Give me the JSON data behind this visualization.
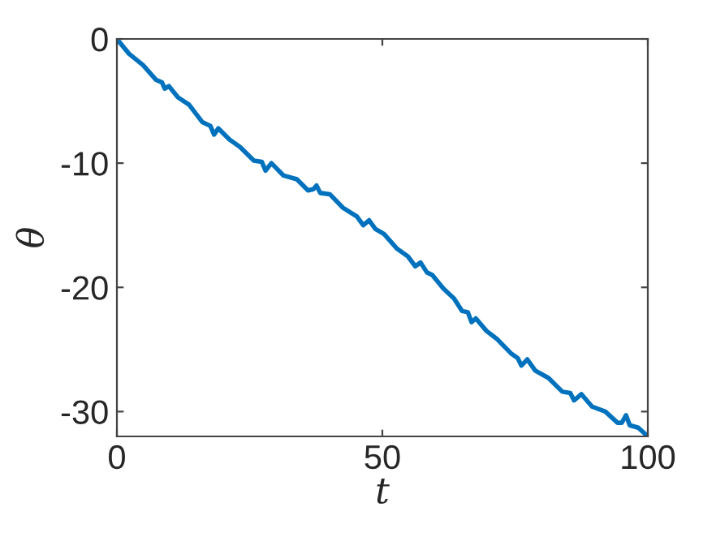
{
  "chart_data": {
    "type": "line",
    "xlabel": "t",
    "ylabel": "θ",
    "xlim": [
      0,
      100
    ],
    "ylim": [
      -32,
      0
    ],
    "xticks": [
      0,
      50,
      100
    ],
    "yticks": [
      {
        "value": 0,
        "label": "0"
      },
      {
        "value": -10,
        "label": "-10"
      },
      {
        "value": -20,
        "label": "-20"
      },
      {
        "value": -30,
        "label": "-30"
      }
    ],
    "grid": false,
    "legend": false,
    "series": [
      {
        "color": "#0072bd",
        "line_style": "solid",
        "x": [
          0,
          2.3,
          4.9,
          7.4,
          8.5,
          9.0,
          9.8,
          11.5,
          13.6,
          16.1,
          17.6,
          18.3,
          19.1,
          21.2,
          23.2,
          25.8,
          27.3,
          28.0,
          29.1,
          31.4,
          33.9,
          36.0,
          37.0,
          37.6,
          38.3,
          40.1,
          42.6,
          45.2,
          46.4,
          47.5,
          48.7,
          50.3,
          52.8,
          54.8,
          56.2,
          57.2,
          58.4,
          59.4,
          61.5,
          63.5,
          65.0,
          66.1,
          66.8,
          67.6,
          69.6,
          71.7,
          74.2,
          75.5,
          76.2,
          77.3,
          78.8,
          81.3,
          83.9,
          85.4,
          86.1,
          87.5,
          89.5,
          92.0,
          94.3,
          95.1,
          95.9,
          96.6,
          98.2,
          100
        ],
        "values": [
          0,
          -1.2,
          -2.1,
          -3.3,
          -3.5,
          -4.0,
          -3.8,
          -4.7,
          -5.3,
          -6.7,
          -7.0,
          -7.7,
          -7.2,
          -8.1,
          -8.7,
          -9.8,
          -9.9,
          -10.6,
          -10.0,
          -11.0,
          -11.3,
          -12.2,
          -12.1,
          -11.8,
          -12.4,
          -12.5,
          -13.6,
          -14.3,
          -15.0,
          -14.6,
          -15.3,
          -15.7,
          -16.9,
          -17.5,
          -18.3,
          -18.0,
          -18.8,
          -19.0,
          -20.1,
          -20.9,
          -21.9,
          -22.0,
          -22.8,
          -22.5,
          -23.5,
          -24.2,
          -25.3,
          -25.7,
          -26.3,
          -25.8,
          -26.7,
          -27.3,
          -28.4,
          -28.5,
          -29.1,
          -28.6,
          -29.6,
          -30.0,
          -30.9,
          -30.9,
          -30.3,
          -31.1,
          -31.3,
          -32.0
        ]
      }
    ]
  }
}
